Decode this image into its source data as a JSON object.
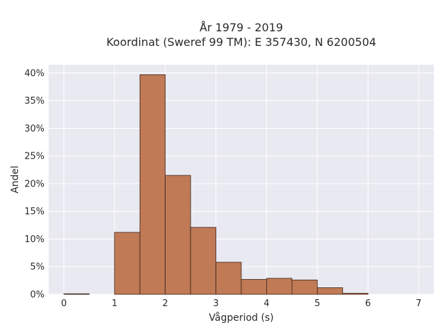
{
  "chart_data": {
    "type": "bar",
    "title_lines": [
      "År 1979 - 2019",
      "Koordinat (Sweref 99 TM): E 357430, N 6200504"
    ],
    "xlabel": "Vågperiod (s)",
    "ylabel": "Andel",
    "bin_width": 0.5,
    "bins": [
      {
        "x0": 0.0,
        "x1": 0.5,
        "value": 0.1
      },
      {
        "x0": 1.0,
        "x1": 1.5,
        "value": 11.2
      },
      {
        "x0": 1.5,
        "x1": 2.0,
        "value": 39.7
      },
      {
        "x0": 2.0,
        "x1": 2.5,
        "value": 21.5
      },
      {
        "x0": 2.5,
        "x1": 3.0,
        "value": 12.1
      },
      {
        "x0": 3.0,
        "x1": 3.5,
        "value": 5.8
      },
      {
        "x0": 3.5,
        "x1": 4.0,
        "value": 2.7
      },
      {
        "x0": 4.0,
        "x1": 4.5,
        "value": 2.9
      },
      {
        "x0": 4.5,
        "x1": 5.0,
        "value": 2.6
      },
      {
        "x0": 5.0,
        "x1": 5.5,
        "value": 1.2
      },
      {
        "x0": 5.5,
        "x1": 6.0,
        "value": 0.2
      }
    ],
    "xlim": [
      -0.3,
      7.3
    ],
    "ylim": [
      0,
      41.5
    ],
    "xticks": [
      0,
      1,
      2,
      3,
      4,
      5,
      6,
      7
    ],
    "xtick_labels": [
      "0",
      "1",
      "2",
      "3",
      "4",
      "5",
      "6",
      "7"
    ],
    "yticks": [
      0,
      5,
      10,
      15,
      20,
      25,
      30,
      35,
      40
    ],
    "ytick_labels": [
      "0%",
      "5%",
      "10%",
      "15%",
      "20%",
      "25%",
      "30%",
      "35%",
      "40%"
    ],
    "grid": true,
    "legend": "none",
    "colors": {
      "bar_fill": "#c07a56",
      "bar_edge": "#3a2418",
      "plot_background": "#e9e9f1",
      "grid": "#ffffff"
    }
  }
}
